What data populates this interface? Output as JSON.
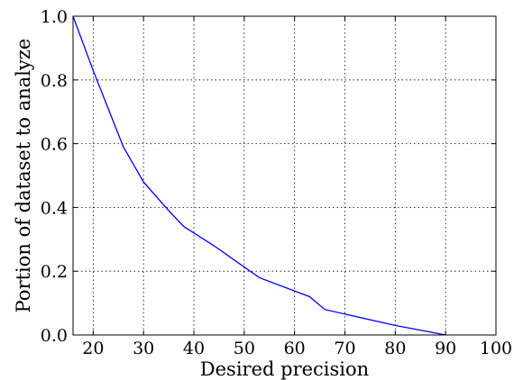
{
  "chart_data": {
    "type": "line",
    "xlabel": "Desired precision",
    "ylabel": "Portion of dataset to analyze",
    "xlim": [
      16,
      100
    ],
    "ylim": [
      0.0,
      1.0
    ],
    "x_ticks": [
      20,
      30,
      40,
      50,
      60,
      70,
      80,
      90,
      100
    ],
    "x_tick_labels": [
      "20",
      "30",
      "40",
      "50",
      "60",
      "70",
      "80",
      "90",
      "100"
    ],
    "y_ticks": [
      0.0,
      0.2,
      0.4,
      0.6,
      0.8,
      1.0
    ],
    "y_tick_labels": [
      "0.0",
      "0.2",
      "0.4",
      "0.6",
      "0.8",
      "1.0"
    ],
    "grid": true,
    "line_color": "#0000ff",
    "series": [
      {
        "x": [
          16,
          20,
          26,
          30,
          35,
          38,
          44,
          53,
          63,
          66,
          80,
          90
        ],
        "y": [
          1.0,
          0.83,
          0.59,
          0.48,
          0.39,
          0.34,
          0.28,
          0.18,
          0.12,
          0.08,
          0.03,
          0.0
        ]
      }
    ]
  }
}
